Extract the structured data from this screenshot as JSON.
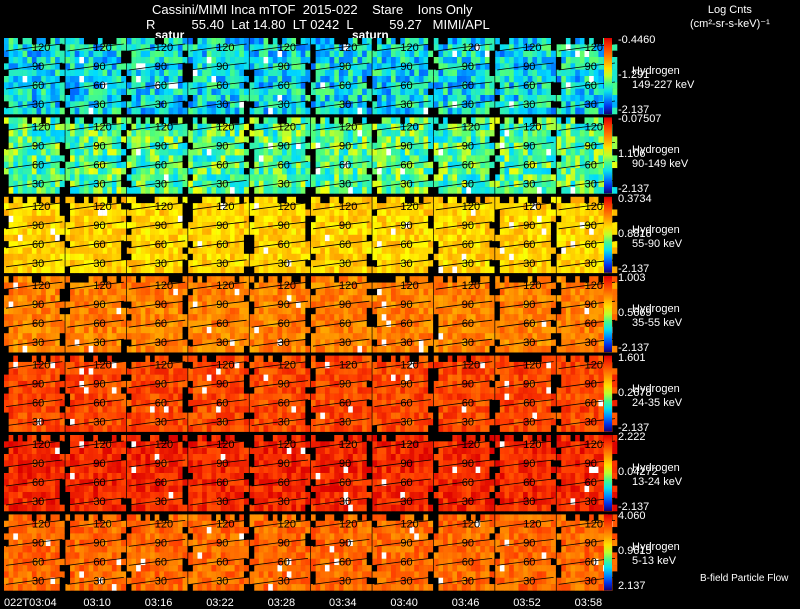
{
  "header": {
    "line1": "Cassini/MIMI Inca mTOF  2015-022    Stare    Ions Only",
    "line2": "R          55.40  Lat 14.80  LT 0242  L          59.27   MIMI/APL",
    "tag_left": "satur",
    "tag_right": "saturn"
  },
  "colorbar_title": {
    "line1": "Log Cnts",
    "line2": "(cm²-sr-s-keV)⁻¹"
  },
  "footer_note": "B-field Particle Flow",
  "chart_data": {
    "type": "heatmap",
    "title": "Cassini/MIMI Inca mTOF  2015-022    Stare    Ions Only",
    "time_labels": [
      "022T03:04",
      "03:10",
      "03:16",
      "03:22",
      "03:28",
      "03:34",
      "03:40",
      "03:46",
      "03:52",
      "03:58"
    ],
    "pitch_angle_ticks": [
      "120",
      "90",
      "60",
      "30"
    ],
    "rows": [
      {
        "species": "Hydrogen",
        "energy": "149-227 keV",
        "cmax": "-0.4460",
        "cmid": "-1.291",
        "cmin": "-2.137",
        "level": 0.3
      },
      {
        "species": "Hydrogen",
        "energy": "90-149 keV",
        "cmax": "-0.07507",
        "cmid": "1.106",
        "cmin": "-2.137",
        "level": 0.4
      },
      {
        "species": "Hydrogen",
        "energy": "55-90 keV",
        "cmax": "0.3734",
        "cmid": "0.8816",
        "cmin": "-2.137",
        "level": 0.62
      },
      {
        "species": "Hydrogen",
        "energy": "35-55 keV",
        "cmax": "1.003",
        "cmid": "0.5669",
        "cmin": "-2.137",
        "level": 0.76
      },
      {
        "species": "Hydrogen",
        "energy": "24-35 keV",
        "cmax": "1.601",
        "cmid": "0.2678",
        "cmin": "-2.137",
        "level": 0.86
      },
      {
        "species": "Hydrogen",
        "energy": "13-24 keV",
        "cmax": "2.222",
        "cmid": "0.04272",
        "cmin": "-2.137",
        "level": 0.92
      },
      {
        "species": "Hydrogen",
        "energy": "5-13 keV",
        "cmax": "4.060",
        "cmid": "0.9615",
        "cmin": "2.137",
        "level": 0.8
      }
    ]
  }
}
